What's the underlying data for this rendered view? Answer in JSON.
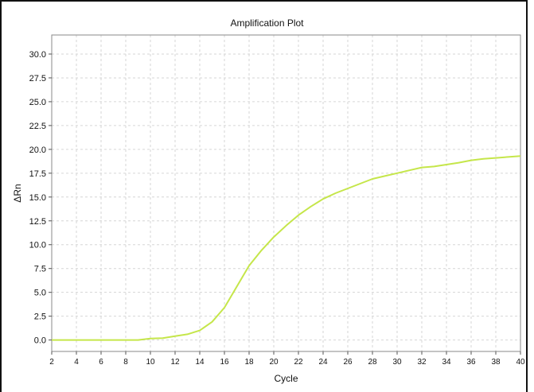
{
  "chart_data": {
    "type": "line",
    "title": "Amplification Plot",
    "xlabel": "Cycle",
    "ylabel": "ΔRn",
    "xlim": [
      2,
      40
    ],
    "ylim": [
      -1.2,
      32
    ],
    "xticks": [
      2,
      4,
      6,
      8,
      10,
      12,
      14,
      16,
      18,
      20,
      22,
      24,
      26,
      28,
      30,
      32,
      34,
      36,
      38,
      40
    ],
    "yticks": [
      0.0,
      2.5,
      5.0,
      7.5,
      10.0,
      12.5,
      15.0,
      17.5,
      20.0,
      22.5,
      25.0,
      27.5,
      30.0
    ],
    "ytick_labels": [
      "0.0",
      "2.5",
      "5.0",
      "7.5",
      "10.0",
      "12.5",
      "15.0",
      "17.5",
      "20.0",
      "22.5",
      "25.0",
      "27.5",
      "30.0"
    ],
    "grid": true,
    "series": [
      {
        "color": "#c5e64a",
        "x": [
          2,
          4,
          6,
          8,
          9,
          10,
          11,
          12,
          13,
          14,
          15,
          16,
          17,
          18,
          19,
          20,
          21,
          22,
          23,
          24,
          25,
          26,
          27,
          28,
          29,
          30,
          31,
          32,
          33,
          34,
          35,
          36,
          37,
          38,
          39,
          40
        ],
        "y": [
          0.0,
          0.0,
          0.0,
          0.0,
          0.0,
          0.15,
          0.2,
          0.4,
          0.6,
          1.0,
          1.9,
          3.4,
          5.6,
          7.8,
          9.4,
          10.8,
          12.0,
          13.1,
          14.0,
          14.8,
          15.4,
          15.9,
          16.4,
          16.9,
          17.2,
          17.5,
          17.8,
          18.1,
          18.2,
          18.4,
          18.6,
          18.85,
          19.0,
          19.1,
          19.2,
          19.3
        ]
      }
    ]
  }
}
